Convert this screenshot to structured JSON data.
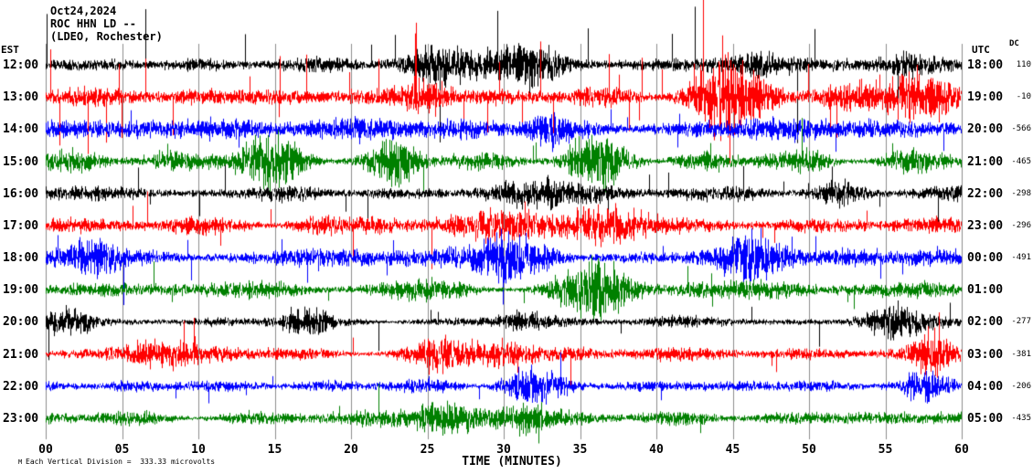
{
  "header": {
    "date": "Oct24,2024",
    "station": "ROC HHN LD --",
    "network": "(LDEO, Rochester)"
  },
  "axes": {
    "left_label": "EST",
    "right_label": "UTC",
    "dc_label": "DC",
    "x_label": "TIME (MINUTES)",
    "x_ticks": [
      "00",
      "05",
      "10",
      "15",
      "20",
      "25",
      "30",
      "35",
      "40",
      "45",
      "50",
      "55",
      "60"
    ]
  },
  "footer": {
    "scale_note": "Each Vertical Division =  333.33 microvolts",
    "corner_mark": "M"
  },
  "chart_data": {
    "type": "line",
    "title": "ROC HHN LD seismogram helicorder, Oct 24 2024",
    "x_range_minutes": [
      0,
      60
    ],
    "minutes_per_line": 60,
    "vertical_division_microvolts": 333.33,
    "grid": {
      "vlines_every_min": 5,
      "vlines_on": true
    },
    "trace_colors": {
      "black": "#000000",
      "red": "#ff0000",
      "blue": "#0000ff",
      "green": "#008000"
    },
    "rows": [
      {
        "est": "12:00",
        "utc": "18:00",
        "dc": "110",
        "color": "#000000",
        "amp": 8,
        "seed": 101,
        "spike_rate": 0.02,
        "spike_amp": 45,
        "up_bias": 0.6,
        "bursts": [
          [
            27,
            3,
            2.2
          ],
          [
            31,
            2,
            1.8
          ],
          [
            47,
            1.5,
            1.8
          ],
          [
            56,
            1,
            1.8
          ]
        ]
      },
      {
        "est": "13:00",
        "utc": "19:00",
        "dc": "-10",
        "color": "#ff0000",
        "amp": 11,
        "seed": 102,
        "spike_rate": 0.03,
        "spike_amp": 55,
        "up_bias": 0.65,
        "bursts": [
          [
            25,
            1,
            1.6
          ],
          [
            44,
            2,
            2.2
          ],
          [
            47,
            1,
            2.6
          ],
          [
            56,
            2,
            2.4
          ]
        ]
      },
      {
        "est": "14:00",
        "utc": "20:00",
        "dc": "-566",
        "color": "#0000ff",
        "amp": 12,
        "seed": 103,
        "spike_rate": 0.01,
        "spike_amp": 25,
        "up_bias": 0.5,
        "bursts": [
          [
            11,
            1.5,
            1.6
          ],
          [
            33,
            1,
            1.4
          ]
        ]
      },
      {
        "est": "15:00",
        "utc": "21:00",
        "dc": "-465",
        "color": "#008000",
        "amp": 11,
        "seed": 104,
        "spike_rate": 0.012,
        "spike_amp": 28,
        "up_bias": 0.5,
        "bursts": [
          [
            14,
            2,
            1.7
          ],
          [
            23,
            1,
            1.5
          ],
          [
            36,
            1.5,
            1.6
          ]
        ]
      },
      {
        "est": "16:00",
        "utc": "22:00",
        "dc": "-298",
        "color": "#000000",
        "amp": 8,
        "seed": 105,
        "spike_rate": 0.01,
        "spike_amp": 30,
        "up_bias": 0.5,
        "bursts": [
          [
            34,
            2.5,
            1.8
          ],
          [
            52,
            1,
            1.5
          ]
        ]
      },
      {
        "est": "17:00",
        "utc": "23:00",
        "dc": "-296",
        "color": "#ff0000",
        "amp": 9,
        "seed": 106,
        "spike_rate": 0.012,
        "spike_amp": 30,
        "up_bias": 0.5,
        "bursts": [
          [
            17,
            1,
            1.4
          ],
          [
            31,
            3,
            2.0
          ],
          [
            36,
            2,
            1.8
          ]
        ]
      },
      {
        "est": "18:00",
        "utc": "00:00",
        "dc": "-491",
        "color": "#0000ff",
        "amp": 11,
        "seed": 107,
        "spike_rate": 0.015,
        "spike_amp": 30,
        "up_bias": 0.5,
        "bursts": [
          [
            3,
            1,
            1.5
          ],
          [
            30,
            2,
            1.7
          ],
          [
            47,
            1.5,
            1.7
          ]
        ]
      },
      {
        "est": "19:00",
        "utc": "01:00",
        "dc": "",
        "color": "#008000",
        "amp": 10,
        "seed": 108,
        "spike_rate": 0.012,
        "spike_amp": 25,
        "up_bias": 0.5,
        "bursts": [
          [
            36,
            2,
            1.7
          ],
          [
            42,
            1,
            1.5
          ]
        ]
      },
      {
        "est": "20:00",
        "utc": "02:00",
        "dc": "-277",
        "color": "#000000",
        "amp": 6,
        "seed": 109,
        "spike_rate": 0.008,
        "spike_amp": 28,
        "up_bias": 0.5,
        "bursts": [
          [
            1,
            1.5,
            2.2
          ],
          [
            17,
            1,
            1.5
          ],
          [
            31,
            1,
            1.8
          ],
          [
            55,
            1.5,
            2.0
          ]
        ]
      },
      {
        "est": "21:00",
        "utc": "03:00",
        "dc": "-381",
        "color": "#ff0000",
        "amp": 8,
        "seed": 110,
        "spike_rate": 0.01,
        "spike_amp": 30,
        "up_bias": 0.5,
        "bursts": [
          [
            5,
            2,
            2.0
          ],
          [
            26,
            2,
            1.9
          ],
          [
            30,
            1,
            1.7
          ],
          [
            58,
            1,
            2.3
          ]
        ]
      },
      {
        "est": "22:00",
        "utc": "04:00",
        "dc": "-206",
        "color": "#0000ff",
        "amp": 7,
        "seed": 111,
        "spike_rate": 0.008,
        "spike_amp": 20,
        "up_bias": 0.5,
        "bursts": [
          [
            31,
            2,
            1.7
          ],
          [
            57,
            1,
            1.5
          ]
        ]
      },
      {
        "est": "23:00",
        "utc": "05:00",
        "dc": "-435",
        "color": "#008000",
        "amp": 8,
        "seed": 112,
        "spike_rate": 0.008,
        "spike_amp": 22,
        "up_bias": 0.5,
        "bursts": [
          [
            27,
            3,
            1.9
          ],
          [
            31,
            1,
            1.7
          ]
        ]
      }
    ]
  }
}
